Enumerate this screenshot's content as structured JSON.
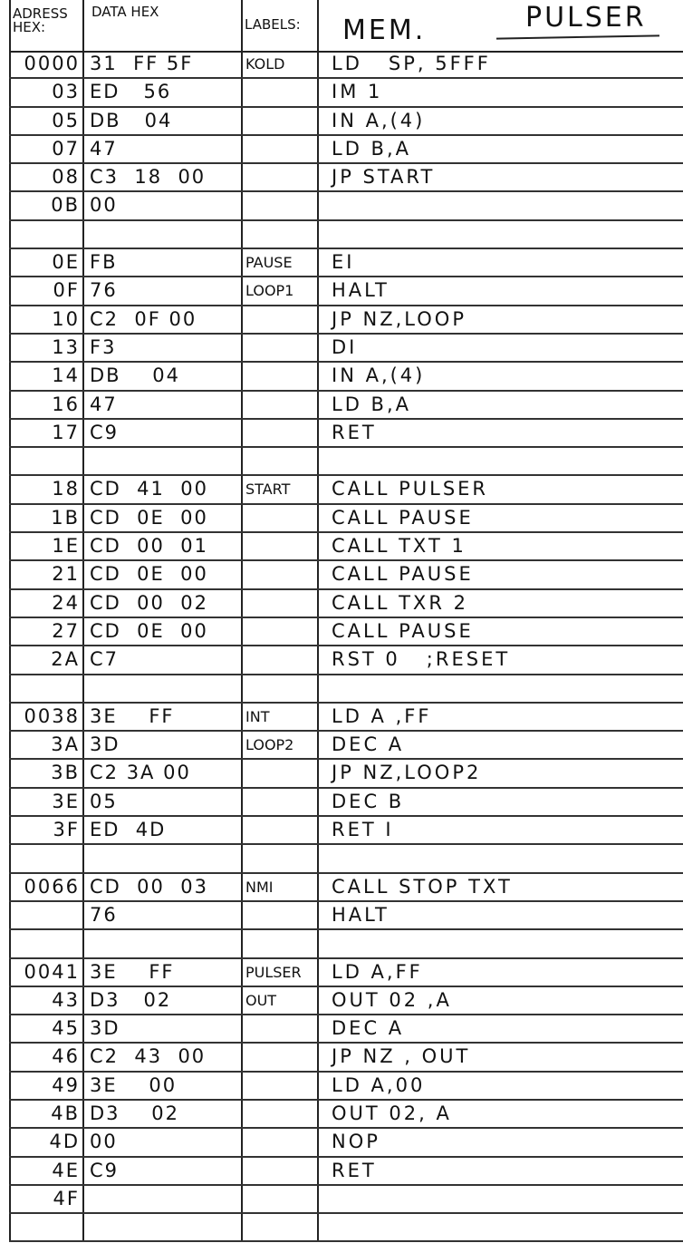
{
  "header": {
    "address_label": "ADRESS HEX:",
    "data_label": "DATA HEX",
    "labels_label": "LABELS:",
    "mem_label": "MEM.",
    "title": "PULSER"
  },
  "rows": [
    {
      "addr": "0000",
      "data": "31  FF 5F",
      "label": "KOLD",
      "mn": "LD   SP, 5FFF"
    },
    {
      "addr": "03",
      "data": "ED   56",
      "label": "",
      "mn": "IM 1"
    },
    {
      "addr": "05",
      "data": "DB   04",
      "label": "",
      "mn": "IN A,(4)"
    },
    {
      "addr": "07",
      "data": "47",
      "label": "",
      "mn": "LD B,A"
    },
    {
      "addr": "08",
      "data": "C3  18  00",
      "label": "",
      "mn": "JP START"
    },
    {
      "addr": "0B",
      "data": "00",
      "label": "",
      "mn": ""
    },
    {
      "addr": "",
      "data": "",
      "label": "",
      "mn": ""
    },
    {
      "addr": "0E",
      "data": "FB",
      "label": "PAUSE",
      "mn": "EI"
    },
    {
      "addr": "0F",
      "data": "76",
      "label": "LOOP1",
      "mn": "HALT"
    },
    {
      "addr": "10",
      "data": "C2  0F 00",
      "label": "",
      "mn": "JP NZ,LOOP"
    },
    {
      "addr": "13",
      "data": "F3",
      "label": "",
      "mn": "DI"
    },
    {
      "addr": "14",
      "data": "DB    04",
      "label": "",
      "mn": "IN A,(4)"
    },
    {
      "addr": "16",
      "data": "47",
      "label": "",
      "mn": "LD B,A"
    },
    {
      "addr": "17",
      "data": "C9",
      "label": "",
      "mn": "RET"
    },
    {
      "addr": "",
      "data": "",
      "label": "",
      "mn": ""
    },
    {
      "addr": "18",
      "data": "CD  41  00",
      "label": "START",
      "mn": "CALL PULSER"
    },
    {
      "addr": "1B",
      "data": "CD  0E  00",
      "label": "",
      "mn": "CALL PAUSE"
    },
    {
      "addr": "1E",
      "data": "CD  00  01",
      "label": "",
      "mn": "CALL TXT 1"
    },
    {
      "addr": "21",
      "data": "CD  0E  00",
      "label": "",
      "mn": "CALL PAUSE"
    },
    {
      "addr": "24",
      "data": "CD  00  02",
      "label": "",
      "mn": "CALL TXR 2"
    },
    {
      "addr": "27",
      "data": "CD  0E  00",
      "label": "",
      "mn": "CALL PAUSE"
    },
    {
      "addr": "2A",
      "data": "C7",
      "label": "",
      "mn": "RST 0   ;RESET"
    },
    {
      "addr": "",
      "data": "",
      "label": "",
      "mn": ""
    },
    {
      "addr": "0038",
      "data": "3E    FF",
      "label": "INT",
      "mn": "LD A ,FF"
    },
    {
      "addr": "3A",
      "data": "3D",
      "label": "LOOP2",
      "mn": "DEC A"
    },
    {
      "addr": "3B",
      "data": "C2 3A 00",
      "label": "",
      "mn": "JP NZ,LOOP2"
    },
    {
      "addr": "3E",
      "data": "05",
      "label": "",
      "mn": "DEC B"
    },
    {
      "addr": "3F",
      "data": "ED  4D",
      "label": "",
      "mn": "RET I"
    },
    {
      "addr": "",
      "data": "",
      "label": "",
      "mn": ""
    },
    {
      "addr": "0066",
      "data": "CD  00  03",
      "label": "NMI",
      "mn": "CALL STOP TXT"
    },
    {
      "addr": "",
      "data": "76",
      "label": "",
      "mn": "HALT"
    },
    {
      "addr": "",
      "data": "",
      "label": "",
      "mn": ""
    },
    {
      "addr": "0041",
      "data": "3E    FF",
      "label": "PULSER",
      "mn": "LD A,FF"
    },
    {
      "addr": "43",
      "data": "D3   02",
      "label": "OUT",
      "mn": "OUT 02 ,A"
    },
    {
      "addr": "45",
      "data": "3D",
      "label": "",
      "mn": "DEC A"
    },
    {
      "addr": "46",
      "data": "C2  43  00",
      "label": "",
      "mn": "JP NZ , OUT"
    },
    {
      "addr": "49",
      "data": "3E    00",
      "label": "",
      "mn": "LD A,00"
    },
    {
      "addr": "4B",
      "data": "D3    02",
      "label": "",
      "mn": "OUT 02, A"
    },
    {
      "addr": "4D",
      "data": "00",
      "label": "",
      "mn": "NOP"
    },
    {
      "addr": "4E",
      "data": "C9",
      "label": "",
      "mn": "RET"
    },
    {
      "addr": "4F",
      "data": "",
      "label": "",
      "mn": ""
    },
    {
      "addr": "",
      "data": "",
      "label": "",
      "mn": ""
    }
  ]
}
